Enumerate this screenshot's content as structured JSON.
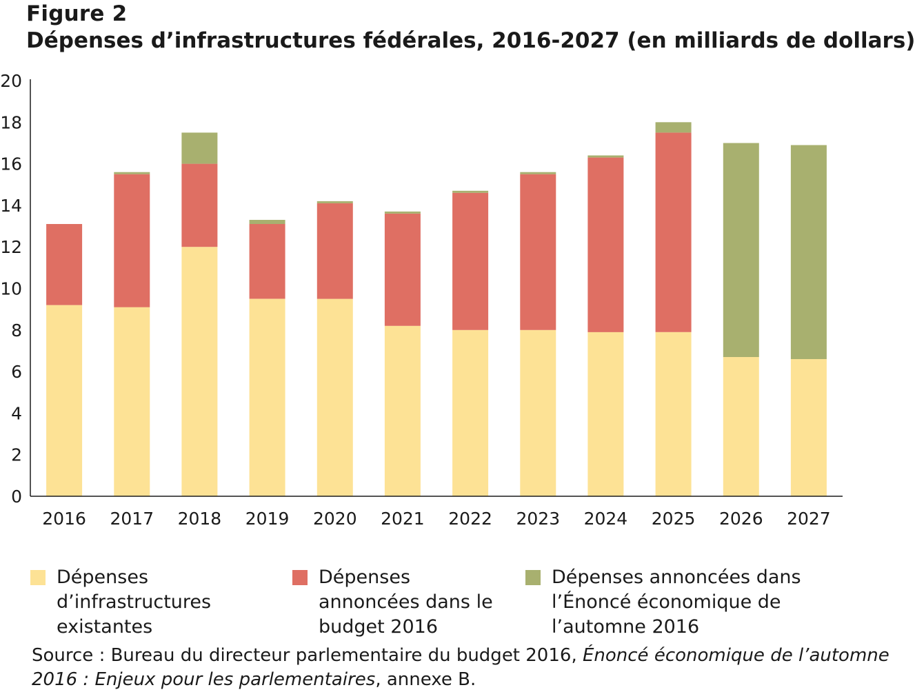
{
  "figure_label": "Figure 2",
  "title": "Dépenses d’infrastructures fédérales, 2016-2027 (en milliards de dollars)",
  "chart_data": {
    "type": "bar",
    "stacked": true,
    "title": "Dépenses d’infrastructures fédérales, 2016-2027 (en milliards de dollars)",
    "xlabel": "",
    "ylabel": "",
    "ylim": [
      0,
      20
    ],
    "yticks": [
      0,
      2,
      4,
      6,
      8,
      10,
      12,
      14,
      16,
      18,
      20
    ],
    "grid": false,
    "legend_position": "bottom",
    "categories": [
      "2016",
      "2017",
      "2018",
      "2019",
      "2020",
      "2021",
      "2022",
      "2023",
      "2024",
      "2025",
      "2026",
      "2027"
    ],
    "series": [
      {
        "name": "Dépenses d’infrastructures existantes",
        "color": "#fde295",
        "values": [
          9.2,
          9.1,
          12.0,
          9.5,
          9.5,
          8.2,
          8.0,
          8.0,
          7.9,
          7.9,
          6.7,
          6.6
        ]
      },
      {
        "name": "Dépenses annoncées dans le budget 2016",
        "color": "#df6f63",
        "values": [
          3.9,
          6.4,
          4.0,
          3.6,
          4.6,
          5.4,
          6.6,
          7.5,
          8.4,
          9.6,
          0,
          0
        ]
      },
      {
        "name": "Dépenses annoncées dans l’Énoncé économique de l’automne 2016",
        "color": "#a8b06f",
        "values": [
          0,
          0.1,
          1.5,
          0.2,
          0.1,
          0.1,
          0.1,
          0.1,
          0.1,
          0.5,
          10.3,
          10.3
        ]
      }
    ]
  },
  "legend": [
    {
      "label": "Dépenses d’infrastructures existantes",
      "color": "#fde295"
    },
    {
      "label": "Dépenses annoncées dans le budget 2016",
      "color": "#df6f63"
    },
    {
      "label": "Dépenses annoncées dans l’Énoncé économique de l’automne 2016",
      "color": "#a8b06f"
    }
  ],
  "source": {
    "prefix": "Source : Bureau du directeur parlementaire du budget 2016, ",
    "italic": "Énoncé économique de l’automne 2016 : Enjeux pour les parlementaires",
    "suffix": ", annexe B."
  }
}
